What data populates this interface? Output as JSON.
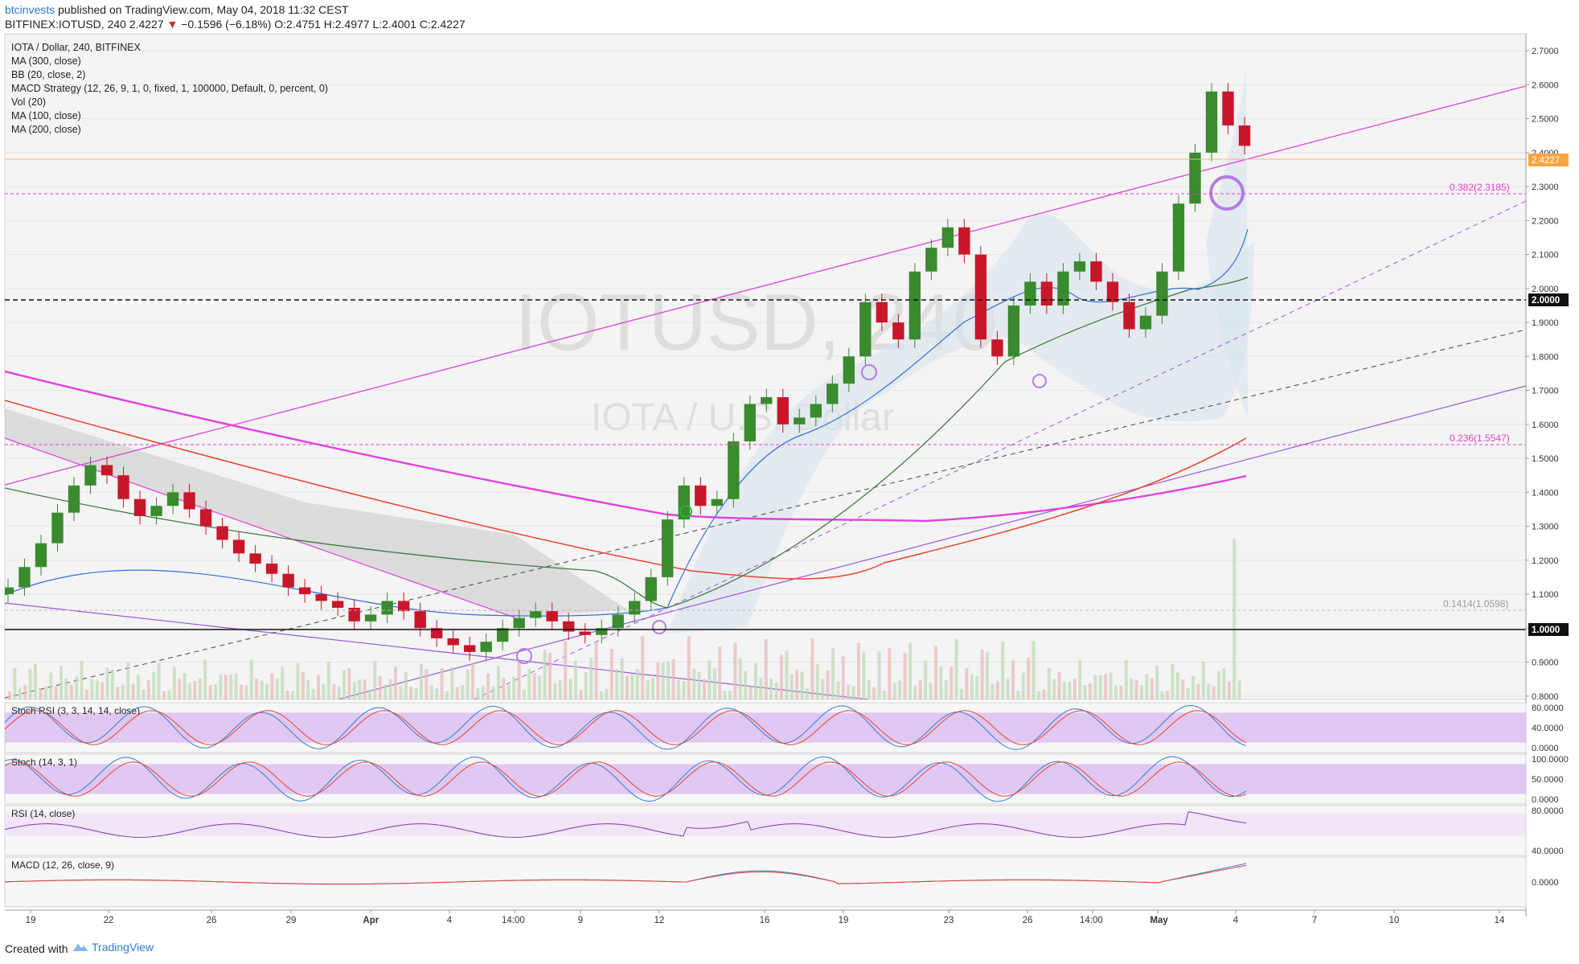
{
  "header": {
    "author": "btcinvests",
    "published_text": " published on TradingView.com, May 04, 2018 11:32 CEST",
    "symbol_line_pre": "BITFINEX:IOTUSD, 240  2.4227 ",
    "down_arrow": "▼",
    "symbol_line_change": " −0.1596 (−6.18%)",
    "symbol_line_ohlc": "  O:2.4751  H:2.4977  L:2.4001  C:2.4227"
  },
  "legend": [
    "IOTA / Dollar, 240, BITFINEX",
    "MA (300, close)",
    "BB (20, close, 2)",
    "MACD Strategy (12, 26, 9, 1, 0, fixed, 1, 100000, Default, 0, percent, 0)",
    "Vol (20)",
    "MA (100, close)",
    "MA (200, close)"
  ],
  "watermark": {
    "main": "IOTUSD, 240",
    "sub": "IOTA / U.S. Dollar"
  },
  "footer": {
    "created": "Created with",
    "brand": "TradingView"
  },
  "colors": {
    "bull": "#3a8a2e",
    "bear": "#c8162b",
    "ma300": "#e040e0",
    "ma200": "#e8422d",
    "ma100": "#3d7a3d",
    "bb": "#7a9ab8",
    "fib": "#e040c8",
    "accent_blue": "#2f7bd8",
    "osc_band": "#d9b8f0"
  },
  "chart_data": {
    "type": "candlestick",
    "title": "IOTA / Dollar, 240, BITFINEX",
    "price_axis": {
      "labels": [
        "2.7000",
        "2.6000",
        "2.5000",
        "2.4000",
        "2.3000",
        "2.2000",
        "2.1000",
        "2.0000",
        "1.9000",
        "1.8000",
        "1.7000",
        "1.6000",
        "1.5000",
        "1.4000",
        "1.3000",
        "1.2000",
        "1.1000",
        "1.0000",
        "0.9000",
        "0.8000"
      ],
      "range": [
        0.79,
        2.75
      ],
      "current_price_label": "2.4227",
      "highlight_levels": [
        "2.0000",
        "1.0000"
      ]
    },
    "time_axis": {
      "labels": [
        "19",
        "22",
        "26",
        "29",
        "Apr",
        "4",
        "14:00",
        "9",
        "12",
        "16",
        "19",
        "23",
        "26",
        "14:00",
        "May",
        "4",
        "7",
        "10",
        "14"
      ]
    },
    "fib_levels": [
      {
        "label": "0.382(2.3185)",
        "value": 2.3185
      },
      {
        "label": "0.236(1.5547)",
        "value": 1.5547
      },
      {
        "label": "0.1414(1.0598)",
        "value": 1.0598
      }
    ],
    "horizontal_lines": [
      2.0,
      1.0
    ],
    "close_series": [
      1.12,
      1.18,
      1.25,
      1.34,
      1.42,
      1.48,
      1.45,
      1.38,
      1.33,
      1.36,
      1.4,
      1.35,
      1.3,
      1.26,
      1.22,
      1.19,
      1.16,
      1.12,
      1.1,
      1.08,
      1.06,
      1.02,
      1.04,
      1.08,
      1.05,
      1.0,
      0.97,
      0.95,
      0.93,
      0.96,
      1.0,
      1.03,
      1.05,
      1.02,
      0.99,
      0.98,
      1.0,
      1.04,
      1.08,
      1.15,
      1.32,
      1.42,
      1.36,
      1.38,
      1.55,
      1.66,
      1.68,
      1.6,
      1.62,
      1.66,
      1.72,
      1.8,
      1.96,
      1.9,
      1.85,
      2.05,
      2.12,
      2.18,
      2.1,
      1.85,
      1.8,
      1.95,
      2.02,
      1.95,
      2.05,
      2.08,
      2.02,
      1.96,
      1.88,
      1.92,
      2.05,
      2.25,
      2.4,
      2.58,
      2.48,
      2.42
    ],
    "indicators": [
      {
        "name": "Stoch RSI (3, 3, 14, 14, close)",
        "axis": [
          "80.0000",
          "40.0000",
          "0.0000"
        ]
      },
      {
        "name": "Stoch (14, 3, 1)",
        "axis": [
          "100.0000",
          "50.0000",
          "0.0000"
        ]
      },
      {
        "name": "RSI (14, close)",
        "axis": [
          "80.0000",
          "40.0000"
        ]
      },
      {
        "name": "MACD (12, 26, close, 9)",
        "axis": [
          "0.0000"
        ]
      }
    ]
  }
}
